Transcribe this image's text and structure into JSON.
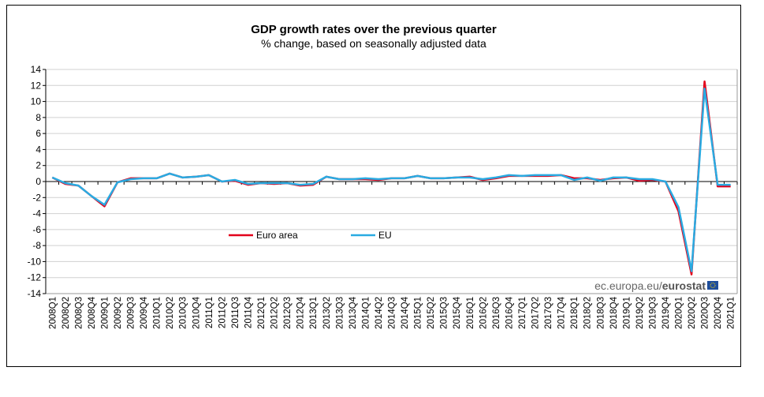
{
  "chart_data": {
    "type": "line",
    "title": "GDP growth rates over the previous quarter",
    "subtitle": "% change, based on seasonally adjusted data",
    "xlabel": "",
    "ylabel": "",
    "ylim": [
      -14,
      14
    ],
    "yticks": [
      14,
      12,
      10,
      8,
      6,
      4,
      2,
      0,
      -2,
      -4,
      -6,
      -8,
      -10,
      -12,
      -14
    ],
    "grid": true,
    "legend": "center-left",
    "source": "ec.europa.eu/eurostat",
    "categories": [
      "2008Q1",
      "2008Q2",
      "2008Q3",
      "2008Q4",
      "2009Q1",
      "2009Q2",
      "2009Q3",
      "2009Q4",
      "2010Q1",
      "2010Q2",
      "2010Q3",
      "2010Q4",
      "2011Q1",
      "2011Q2",
      "2011Q3",
      "2011Q4",
      "2012Q1",
      "2012Q2",
      "2012Q3",
      "2012Q4",
      "2013Q1",
      "2013Q2",
      "2013Q3",
      "2013Q4",
      "2014Q1",
      "2014Q2",
      "2014Q3",
      "2014Q4",
      "2015Q1",
      "2015Q2",
      "2015Q3",
      "2015Q4",
      "2016Q1",
      "2016Q2",
      "2016Q3",
      "2016Q4",
      "2017Q1",
      "2017Q2",
      "2017Q3",
      "2017Q4",
      "2018Q1",
      "2018Q2",
      "2018Q3",
      "2018Q4",
      "2019Q1",
      "2019Q2",
      "2019Q3",
      "2019Q4",
      "2020Q1",
      "2020Q2",
      "2020Q3",
      "2020Q4",
      "2021Q1"
    ],
    "series": [
      {
        "name": "Euro area",
        "color": "#e3001b",
        "values": [
          0.5,
          -0.3,
          -0.5,
          -1.8,
          -3.1,
          -0.1,
          0.4,
          0.4,
          0.4,
          1.0,
          0.5,
          0.6,
          0.8,
          0.0,
          0.1,
          -0.4,
          -0.2,
          -0.3,
          -0.2,
          -0.5,
          -0.4,
          0.6,
          0.3,
          0.3,
          0.3,
          0.2,
          0.4,
          0.4,
          0.7,
          0.4,
          0.4,
          0.5,
          0.6,
          0.2,
          0.4,
          0.7,
          0.7,
          0.7,
          0.7,
          0.8,
          0.4,
          0.4,
          0.2,
          0.4,
          0.5,
          0.1,
          0.2,
          0.0,
          -3.7,
          -11.6,
          12.5,
          -0.6,
          -0.6
        ]
      },
      {
        "name": "EU",
        "color": "#29abe2",
        "values": [
          0.5,
          -0.2,
          -0.5,
          -1.8,
          -2.9,
          -0.1,
          0.3,
          0.4,
          0.4,
          1.0,
          0.5,
          0.6,
          0.8,
          0.0,
          0.2,
          -0.3,
          -0.2,
          -0.2,
          -0.2,
          -0.4,
          -0.3,
          0.6,
          0.3,
          0.3,
          0.4,
          0.3,
          0.4,
          0.4,
          0.7,
          0.4,
          0.4,
          0.5,
          0.5,
          0.3,
          0.5,
          0.8,
          0.7,
          0.8,
          0.8,
          0.8,
          0.2,
          0.5,
          0.1,
          0.5,
          0.5,
          0.3,
          0.3,
          0.0,
          -3.2,
          -11.2,
          11.6,
          -0.4,
          -0.4
        ]
      }
    ]
  }
}
